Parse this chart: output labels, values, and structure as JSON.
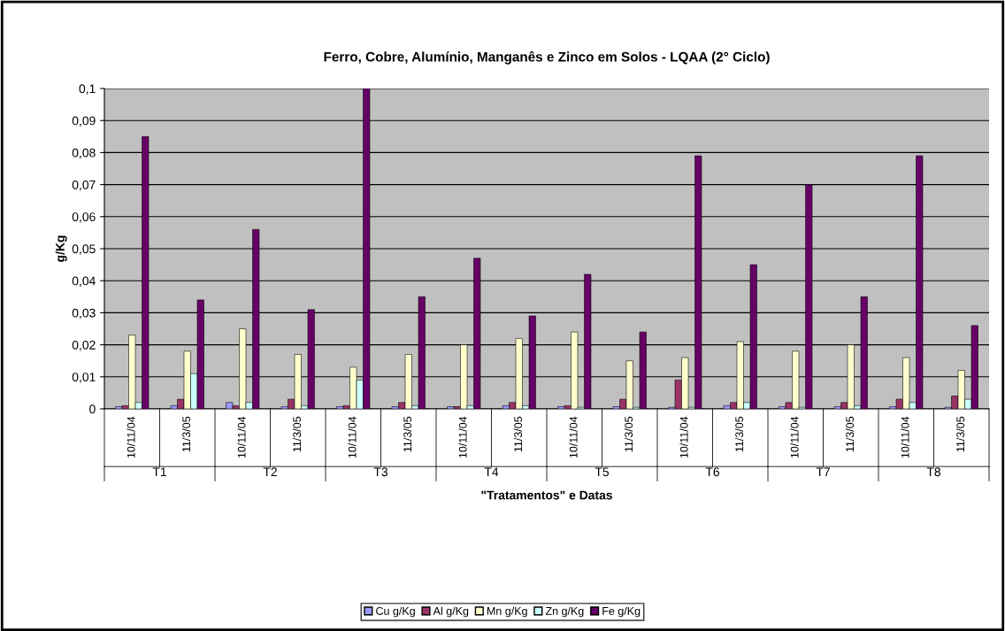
{
  "chart_data": {
    "type": "bar",
    "title": "Ferro, Cobre, Alumínio, Manganês e Zinco em Solos - LQAA (2° Ciclo)",
    "xlabel": "\"Tratamentos\" e Datas",
    "ylabel": "g/Kg",
    "categories": [
      "10/11/04",
      "11/3/05",
      "10/11/04",
      "11/3/05",
      "10/11/04",
      "11/3/05",
      "10/11/04",
      "11/3/05",
      "10/11/04",
      "11/3/05",
      "10/11/04",
      "11/3/05",
      "10/11/04",
      "11/3/05",
      "10/11/04",
      "11/3/05"
    ],
    "annotations": [
      "T1",
      "T2",
      "T3",
      "T4",
      "T5",
      "T6",
      "T7",
      "T8"
    ],
    "series": [
      {
        "name": "Cu g/Kg",
        "color": "#9999ff",
        "values": [
          0.0007,
          0.001,
          0.002,
          0.0007,
          0.0007,
          0.0007,
          0.0007,
          0.001,
          0.0007,
          0.0007,
          0.0005,
          0.001,
          0.0007,
          0.0007,
          0.0007,
          0.0005
        ]
      },
      {
        "name": "Al g/Kg",
        "color": "#993366",
        "values": [
          0.001,
          0.003,
          0.001,
          0.003,
          0.001,
          0.002,
          0.0007,
          0.002,
          0.001,
          0.003,
          0.009,
          0.002,
          0.002,
          0.002,
          0.003,
          0.004
        ]
      },
      {
        "name": "Mn g/Kg",
        "color": "#ffffcc",
        "values": [
          0.023,
          0.018,
          0.025,
          0.017,
          0.013,
          0.017,
          0.02,
          0.022,
          0.024,
          0.015,
          0.016,
          0.021,
          0.018,
          0.02,
          0.016,
          0.012
        ]
      },
      {
        "name": "Zn g/Kg",
        "color": "#ccffff",
        "values": [
          0.002,
          0.011,
          0.002,
          0.001,
          0.009,
          0.001,
          0.001,
          0.001,
          0.0005,
          0.0005,
          0.0005,
          0.002,
          0.0005,
          0.001,
          0.002,
          0.003
        ]
      },
      {
        "name": "Fe g/Kg",
        "color": "#660066",
        "values": [
          0.085,
          0.034,
          0.056,
          0.031,
          0.1,
          0.035,
          0.047,
          0.029,
          0.042,
          0.024,
          0.079,
          0.045,
          0.07,
          0.035,
          0.079,
          0.026
        ]
      }
    ],
    "ylim": [
      0,
      0.1
    ],
    "yticks": [
      {
        "value": 0,
        "label": "0"
      },
      {
        "value": 0.01,
        "label": "0,01"
      },
      {
        "value": 0.02,
        "label": "0,02"
      },
      {
        "value": 0.03,
        "label": "0,03"
      },
      {
        "value": 0.04,
        "label": "0,04"
      },
      {
        "value": 0.05,
        "label": "0,05"
      },
      {
        "value": 0.06,
        "label": "0,06"
      },
      {
        "value": 0.07,
        "label": "0,07"
      },
      {
        "value": 0.08,
        "label": "0,08"
      },
      {
        "value": 0.09,
        "label": "0,09"
      },
      {
        "value": 0.1,
        "label": "0,1"
      }
    ],
    "grid": "y",
    "legend": "bottom"
  }
}
